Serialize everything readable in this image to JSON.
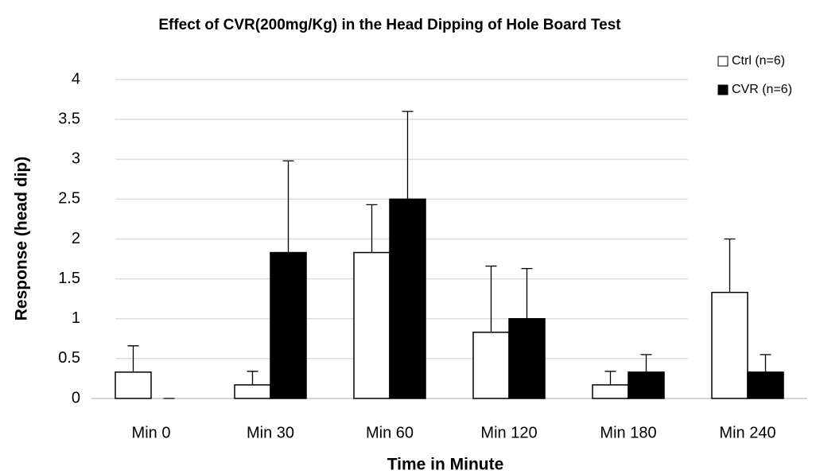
{
  "chart_data": {
    "type": "bar",
    "title": "Effect of CVR(200mg/Kg) in the Head Dipping of Hole Board Test",
    "x_label": "Time in Minute",
    "y_label": "Response (head dip)",
    "categories": [
      "Min 0",
      "Min 30",
      "Min 60",
      "Min 120",
      "Min 180",
      "Min 240"
    ],
    "series": [
      {
        "name": "Ctrl (n=6)",
        "color": "#ffffff",
        "values": [
          0.33,
          0.17,
          1.83,
          0.83,
          0.17,
          1.33
        ],
        "errors": [
          0.33,
          0.17,
          0.6,
          0.83,
          0.17,
          0.67
        ]
      },
      {
        "name": "CVR (n=6)",
        "color": "#000000",
        "values": [
          0,
          1.83,
          2.5,
          1.0,
          0.33,
          0.33
        ],
        "errors": [
          0,
          1.15,
          1.1,
          0.63,
          0.22,
          0.22
        ]
      }
    ],
    "ylim": [
      0,
      4
    ],
    "yticks": [
      0,
      0.5,
      1,
      1.5,
      2,
      2.5,
      3,
      3.5,
      4
    ],
    "grid": true,
    "legend": "top-right"
  }
}
